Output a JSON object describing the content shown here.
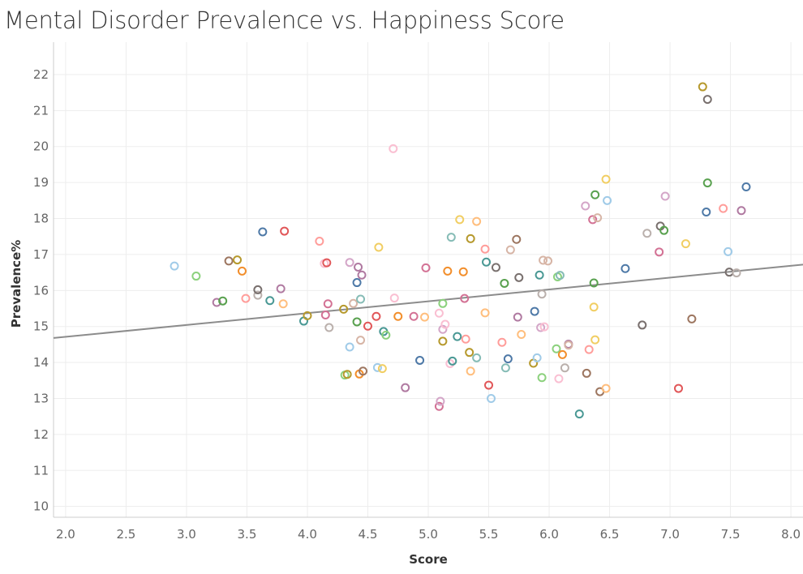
{
  "chart_data": {
    "type": "scatter",
    "title": "Mental Disorder Prevalence vs. Happiness Score",
    "xlabel": "Score",
    "ylabel": "Prevalence%",
    "xlim": [
      1.9,
      8.1
    ],
    "ylim": [
      9.7,
      22.9
    ],
    "xticks": [
      "2.0",
      "2.5",
      "3.0",
      "3.5",
      "4.0",
      "4.5",
      "5.0",
      "5.5",
      "6.0",
      "6.5",
      "7.0",
      "7.5",
      "8.0"
    ],
    "yticks": [
      "10",
      "11",
      "12",
      "13",
      "14",
      "15",
      "16",
      "17",
      "18",
      "19",
      "20",
      "21",
      "22"
    ],
    "grid": true,
    "trend_line": {
      "x": [
        1.9,
        8.1
      ],
      "y": [
        14.68,
        16.72
      ]
    },
    "points": [
      {
        "x": 2.9,
        "y": 16.68,
        "color": "#a0cbe8"
      },
      {
        "x": 3.08,
        "y": 16.4,
        "color": "#8cd17d"
      },
      {
        "x": 3.25,
        "y": 15.67,
        "color": "#b07aa1"
      },
      {
        "x": 3.3,
        "y": 15.71,
        "color": "#59a14f"
      },
      {
        "x": 3.35,
        "y": 16.82,
        "color": "#9d7660"
      },
      {
        "x": 3.42,
        "y": 16.85,
        "color": "#b6992d"
      },
      {
        "x": 3.46,
        "y": 16.54,
        "color": "#f28e2b"
      },
      {
        "x": 3.49,
        "y": 15.78,
        "color": "#ff9d9a"
      },
      {
        "x": 3.59,
        "y": 15.87,
        "color": "#bab0ac"
      },
      {
        "x": 3.59,
        "y": 16.02,
        "color": "#79706e"
      },
      {
        "x": 3.63,
        "y": 17.63,
        "color": "#4e79a7"
      },
      {
        "x": 3.69,
        "y": 15.72,
        "color": "#499894"
      },
      {
        "x": 3.78,
        "y": 16.05,
        "color": "#b07aa1"
      },
      {
        "x": 3.8,
        "y": 15.63,
        "color": "#ffbe7d"
      },
      {
        "x": 3.81,
        "y": 17.65,
        "color": "#e15759"
      },
      {
        "x": 3.97,
        "y": 15.15,
        "color": "#499894"
      },
      {
        "x": 4.0,
        "y": 15.3,
        "color": "#b6992d"
      },
      {
        "x": 4.1,
        "y": 17.37,
        "color": "#ff9d9a"
      },
      {
        "x": 4.14,
        "y": 16.75,
        "color": "#fabfd2"
      },
      {
        "x": 4.15,
        "y": 15.32,
        "color": "#d37295"
      },
      {
        "x": 4.16,
        "y": 16.77,
        "color": "#e15759"
      },
      {
        "x": 4.17,
        "y": 15.63,
        "color": "#d37295"
      },
      {
        "x": 4.18,
        "y": 14.97,
        "color": "#bab0ac"
      },
      {
        "x": 4.3,
        "y": 15.48,
        "color": "#b6992d"
      },
      {
        "x": 4.31,
        "y": 13.65,
        "color": "#8cd17d"
      },
      {
        "x": 4.33,
        "y": 13.67,
        "color": "#b6992d"
      },
      {
        "x": 4.35,
        "y": 16.78,
        "color": "#d4a6c8"
      },
      {
        "x": 4.35,
        "y": 14.43,
        "color": "#a0cbe8"
      },
      {
        "x": 4.38,
        "y": 15.64,
        "color": "#d7b5a6"
      },
      {
        "x": 4.41,
        "y": 15.13,
        "color": "#59a14f"
      },
      {
        "x": 4.41,
        "y": 16.22,
        "color": "#4e79a7"
      },
      {
        "x": 4.42,
        "y": 16.65,
        "color": "#b07aa1"
      },
      {
        "x": 4.43,
        "y": 13.68,
        "color": "#f28e2b"
      },
      {
        "x": 4.44,
        "y": 15.76,
        "color": "#86bcb6"
      },
      {
        "x": 4.44,
        "y": 14.62,
        "color": "#d7b5a6"
      },
      {
        "x": 4.45,
        "y": 16.43,
        "color": "#b07aa1"
      },
      {
        "x": 4.46,
        "y": 13.76,
        "color": "#9d7660"
      },
      {
        "x": 4.5,
        "y": 15.01,
        "color": "#e15759"
      },
      {
        "x": 4.57,
        "y": 15.28,
        "color": "#e15759"
      },
      {
        "x": 4.58,
        "y": 13.86,
        "color": "#a0cbe8"
      },
      {
        "x": 4.59,
        "y": 17.2,
        "color": "#f1ce63"
      },
      {
        "x": 4.62,
        "y": 13.83,
        "color": "#f1ce63"
      },
      {
        "x": 4.63,
        "y": 14.86,
        "color": "#499894"
      },
      {
        "x": 4.65,
        "y": 14.76,
        "color": "#8cd17d"
      },
      {
        "x": 4.71,
        "y": 19.94,
        "color": "#fabfd2"
      },
      {
        "x": 4.72,
        "y": 15.79,
        "color": "#fabfd2"
      },
      {
        "x": 4.75,
        "y": 15.28,
        "color": "#f28e2b"
      },
      {
        "x": 4.81,
        "y": 13.3,
        "color": "#b07aa1"
      },
      {
        "x": 4.88,
        "y": 15.28,
        "color": "#d37295"
      },
      {
        "x": 4.93,
        "y": 14.06,
        "color": "#4e79a7"
      },
      {
        "x": 4.97,
        "y": 15.26,
        "color": "#ffbe7d"
      },
      {
        "x": 4.98,
        "y": 16.63,
        "color": "#d37295"
      },
      {
        "x": 5.09,
        "y": 15.37,
        "color": "#fabfd2"
      },
      {
        "x": 5.09,
        "y": 12.78,
        "color": "#d37295"
      },
      {
        "x": 5.1,
        "y": 12.92,
        "color": "#d4a6c8"
      },
      {
        "x": 5.12,
        "y": 15.64,
        "color": "#8cd17d"
      },
      {
        "x": 5.12,
        "y": 14.59,
        "color": "#b6992d"
      },
      {
        "x": 5.12,
        "y": 14.92,
        "color": "#d4a6c8"
      },
      {
        "x": 5.14,
        "y": 15.06,
        "color": "#fabfd2"
      },
      {
        "x": 5.16,
        "y": 16.54,
        "color": "#f28e2b"
      },
      {
        "x": 5.18,
        "y": 13.97,
        "color": "#fabfd2"
      },
      {
        "x": 5.19,
        "y": 17.48,
        "color": "#86bcb6"
      },
      {
        "x": 5.2,
        "y": 14.04,
        "color": "#499894"
      },
      {
        "x": 5.24,
        "y": 14.72,
        "color": "#499894"
      },
      {
        "x": 5.26,
        "y": 17.97,
        "color": "#f1ce63"
      },
      {
        "x": 5.29,
        "y": 16.52,
        "color": "#f28e2b"
      },
      {
        "x": 5.3,
        "y": 15.78,
        "color": "#d37295"
      },
      {
        "x": 5.31,
        "y": 14.65,
        "color": "#ff9d9a"
      },
      {
        "x": 5.34,
        "y": 14.28,
        "color": "#b6992d"
      },
      {
        "x": 5.35,
        "y": 17.44,
        "color": "#b6992d"
      },
      {
        "x": 5.35,
        "y": 13.76,
        "color": "#ffbe7d"
      },
      {
        "x": 5.4,
        "y": 17.92,
        "color": "#ffbe7d"
      },
      {
        "x": 5.4,
        "y": 14.13,
        "color": "#86bcb6"
      },
      {
        "x": 5.47,
        "y": 15.38,
        "color": "#ffbe7d"
      },
      {
        "x": 5.47,
        "y": 17.15,
        "color": "#ff9d9a"
      },
      {
        "x": 5.48,
        "y": 16.79,
        "color": "#499894"
      },
      {
        "x": 5.5,
        "y": 13.37,
        "color": "#e15759"
      },
      {
        "x": 5.52,
        "y": 13.0,
        "color": "#a0cbe8"
      },
      {
        "x": 5.56,
        "y": 16.64,
        "color": "#79706e"
      },
      {
        "x": 5.61,
        "y": 14.56,
        "color": "#ff9d9a"
      },
      {
        "x": 5.63,
        "y": 16.2,
        "color": "#59a14f"
      },
      {
        "x": 5.64,
        "y": 13.85,
        "color": "#86bcb6"
      },
      {
        "x": 5.66,
        "y": 14.1,
        "color": "#4e79a7"
      },
      {
        "x": 5.68,
        "y": 17.13,
        "color": "#d7b5a6"
      },
      {
        "x": 5.73,
        "y": 17.42,
        "color": "#9d7660"
      },
      {
        "x": 5.74,
        "y": 15.26,
        "color": "#b07aa1"
      },
      {
        "x": 5.75,
        "y": 16.36,
        "color": "#79706e"
      },
      {
        "x": 5.77,
        "y": 14.78,
        "color": "#ffbe7d"
      },
      {
        "x": 5.87,
        "y": 13.98,
        "color": "#b6992d"
      },
      {
        "x": 5.88,
        "y": 15.42,
        "color": "#4e79a7"
      },
      {
        "x": 5.9,
        "y": 14.13,
        "color": "#a0cbe8"
      },
      {
        "x": 5.92,
        "y": 16.43,
        "color": "#499894"
      },
      {
        "x": 5.93,
        "y": 14.97,
        "color": "#d4a6c8"
      },
      {
        "x": 5.94,
        "y": 15.9,
        "color": "#bab0ac"
      },
      {
        "x": 5.94,
        "y": 13.58,
        "color": "#8cd17d"
      },
      {
        "x": 5.95,
        "y": 16.84,
        "color": "#d7b5a6"
      },
      {
        "x": 5.96,
        "y": 14.99,
        "color": "#fabfd2"
      },
      {
        "x": 5.99,
        "y": 16.82,
        "color": "#d7b5a6"
      },
      {
        "x": 6.06,
        "y": 14.38,
        "color": "#8cd17d"
      },
      {
        "x": 6.07,
        "y": 16.38,
        "color": "#8cd17d"
      },
      {
        "x": 6.08,
        "y": 13.55,
        "color": "#fabfd2"
      },
      {
        "x": 6.09,
        "y": 16.42,
        "color": "#86bcb6"
      },
      {
        "x": 6.11,
        "y": 14.22,
        "color": "#f28e2b"
      },
      {
        "x": 6.13,
        "y": 13.85,
        "color": "#bab0ac"
      },
      {
        "x": 6.16,
        "y": 14.51,
        "color": "#b07aa1"
      },
      {
        "x": 6.16,
        "y": 14.48,
        "color": "#d7b5a6"
      },
      {
        "x": 6.25,
        "y": 12.57,
        "color": "#499894"
      },
      {
        "x": 6.3,
        "y": 18.35,
        "color": "#d4a6c8"
      },
      {
        "x": 6.31,
        "y": 13.7,
        "color": "#9d7660"
      },
      {
        "x": 6.33,
        "y": 14.36,
        "color": "#ff9d9a"
      },
      {
        "x": 6.36,
        "y": 17.97,
        "color": "#d37295"
      },
      {
        "x": 6.37,
        "y": 16.21,
        "color": "#59a14f"
      },
      {
        "x": 6.37,
        "y": 15.54,
        "color": "#f1ce63"
      },
      {
        "x": 6.38,
        "y": 18.66,
        "color": "#59a14f"
      },
      {
        "x": 6.38,
        "y": 14.63,
        "color": "#f1ce63"
      },
      {
        "x": 6.4,
        "y": 18.02,
        "color": "#d7b5a6"
      },
      {
        "x": 6.42,
        "y": 13.19,
        "color": "#9d7660"
      },
      {
        "x": 6.47,
        "y": 19.09,
        "color": "#f1ce63"
      },
      {
        "x": 6.47,
        "y": 13.28,
        "color": "#ffbe7d"
      },
      {
        "x": 6.48,
        "y": 18.5,
        "color": "#a0cbe8"
      },
      {
        "x": 6.63,
        "y": 16.61,
        "color": "#4e79a7"
      },
      {
        "x": 6.77,
        "y": 15.04,
        "color": "#79706e"
      },
      {
        "x": 6.81,
        "y": 17.59,
        "color": "#bab0ac"
      },
      {
        "x": 6.91,
        "y": 17.07,
        "color": "#d37295"
      },
      {
        "x": 6.92,
        "y": 17.79,
        "color": "#79706e"
      },
      {
        "x": 6.95,
        "y": 17.67,
        "color": "#59a14f"
      },
      {
        "x": 6.96,
        "y": 18.62,
        "color": "#d4a6c8"
      },
      {
        "x": 7.07,
        "y": 13.28,
        "color": "#e15759"
      },
      {
        "x": 7.13,
        "y": 17.3,
        "color": "#f1ce63"
      },
      {
        "x": 7.18,
        "y": 15.21,
        "color": "#9d7660"
      },
      {
        "x": 7.27,
        "y": 21.66,
        "color": "#b6992d"
      },
      {
        "x": 7.3,
        "y": 18.18,
        "color": "#4e79a7"
      },
      {
        "x": 7.31,
        "y": 21.31,
        "color": "#79706e"
      },
      {
        "x": 7.31,
        "y": 18.99,
        "color": "#59a14f"
      },
      {
        "x": 7.44,
        "y": 18.28,
        "color": "#ff9d9a"
      },
      {
        "x": 7.48,
        "y": 17.08,
        "color": "#a0cbe8"
      },
      {
        "x": 7.49,
        "y": 16.51,
        "color": "#79706e"
      },
      {
        "x": 7.55,
        "y": 16.49,
        "color": "#bab0ac"
      },
      {
        "x": 7.59,
        "y": 18.22,
        "color": "#b07aa1"
      },
      {
        "x": 7.63,
        "y": 18.88,
        "color": "#4e79a7"
      }
    ]
  },
  "style": {
    "grid_color": "#ededed",
    "trend_color": "#8c8c8c",
    "axis_line_color": "#cccccc"
  }
}
